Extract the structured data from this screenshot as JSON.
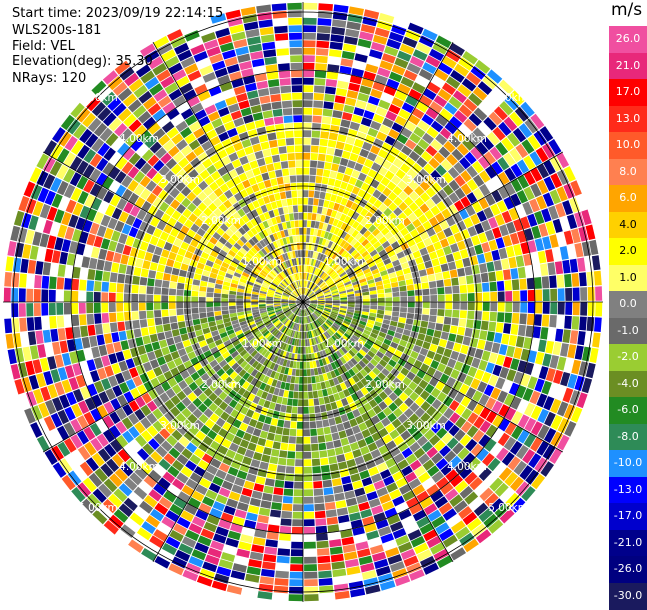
{
  "header": {
    "start_time": "Start time: 2023/09/19 22:14:15",
    "station": "WLS200s-181",
    "field": "Field: VEL",
    "elevation": "Elevation(deg): 35.30",
    "nrays": "NRays: 120"
  },
  "colorbar": {
    "unit": "m/s",
    "labels": [
      "26.0",
      "21.0",
      "17.0",
      "13.0",
      "10.0",
      "8.0",
      "6.0",
      "4.0",
      "2.0",
      "1.0",
      "0.0",
      "-1.0",
      "-2.0",
      "-4.0",
      "-6.0",
      "-8.0",
      "-10.0",
      "-13.0",
      "-17.0",
      "-21.0",
      "-26.0",
      "-30.0"
    ],
    "colors": [
      "#f04fa0",
      "#e8287a",
      "#ff0000",
      "#ff2a1a",
      "#ff5a2a",
      "#ff8050",
      "#ffa500",
      "#ffd000",
      "#ffff00",
      "#ffff66",
      "#808080",
      "#6a6a6a",
      "#9acd32",
      "#6b8e23",
      "#228b22",
      "#2e8b57",
      "#1e90ff",
      "#0000ff",
      "#0000cd",
      "#00008b",
      "#000080",
      "#1a1a5e"
    ]
  },
  "chart_data": {
    "type": "heatmap",
    "subtype": "radar-ppi",
    "field": "VEL",
    "units": "m/s",
    "nrays": 120,
    "range_ring_labels": [
      "1.00km",
      "2.00km",
      "3.00km",
      "4.00km",
      "5.00km"
    ],
    "range_rings_km": [
      1,
      2,
      3,
      4,
      5
    ],
    "color_scale_range": [
      -30,
      26
    ],
    "pattern": "positive velocity (yellow, 1–2 m/s) over northern half within ~3.5 km; negative velocity (green, -2 to -6 m/s) over southern half; grey near-zero scattered; noisy multicolor beyond ~4 km"
  }
}
